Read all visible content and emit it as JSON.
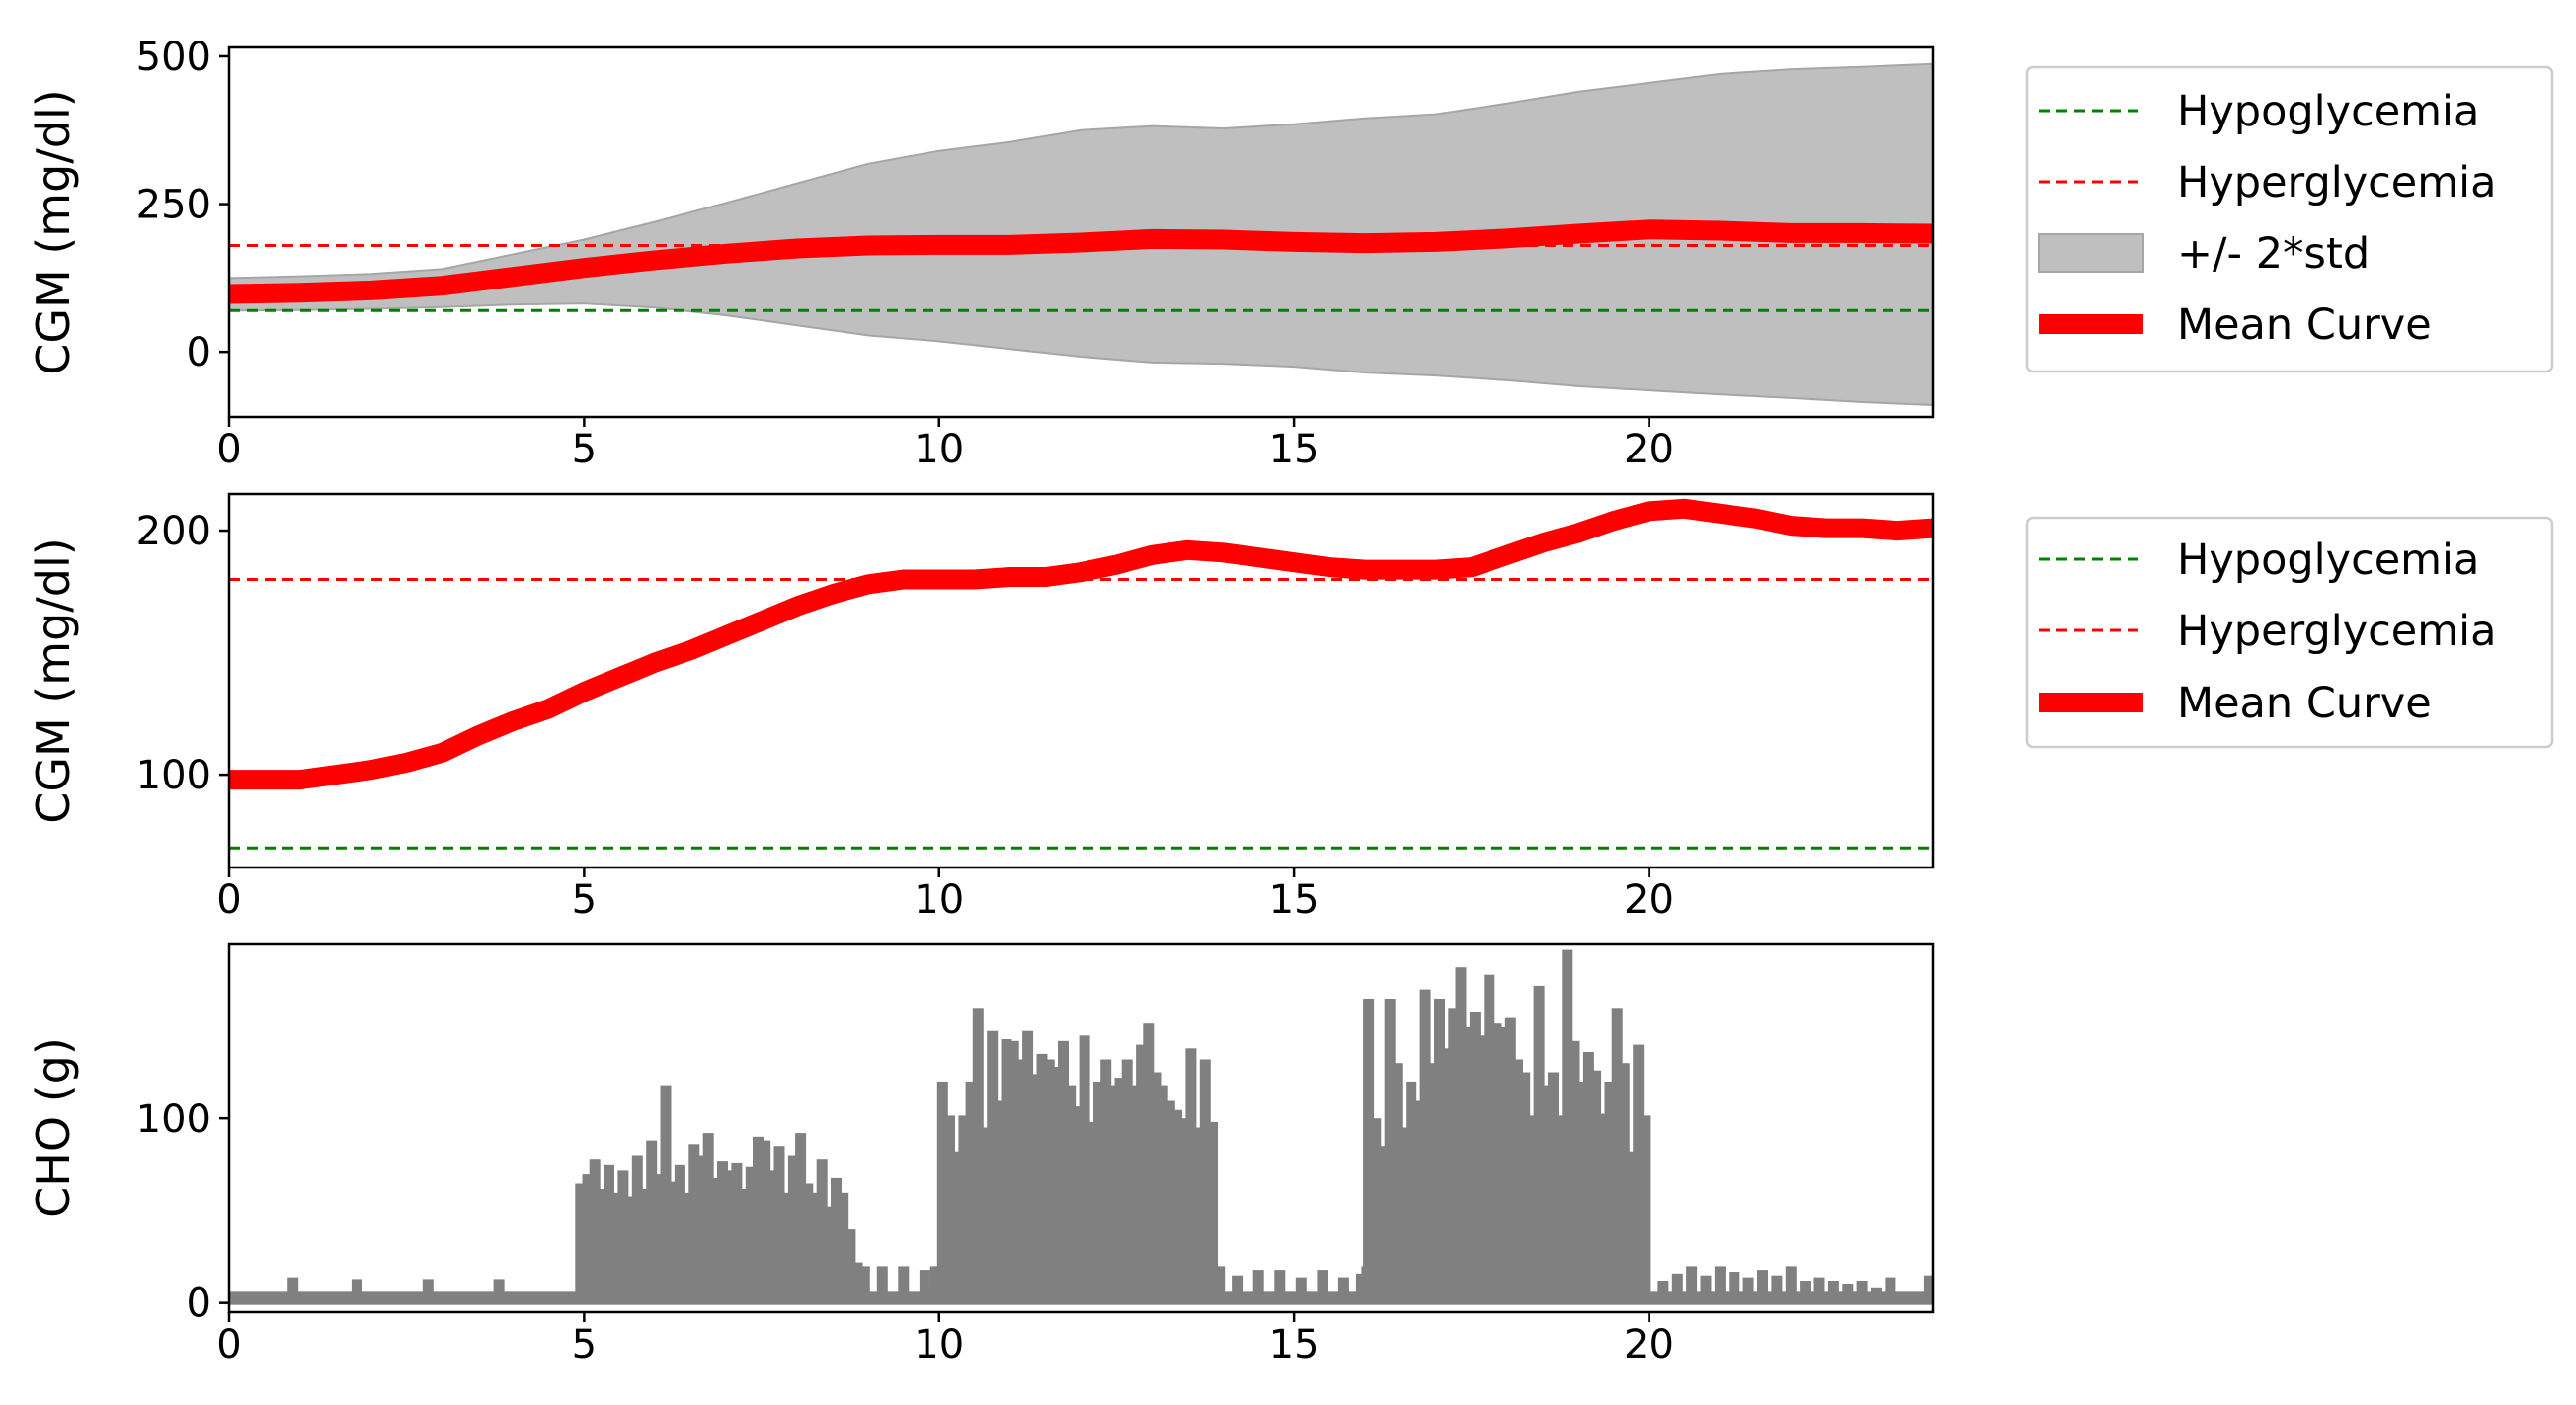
{
  "colors": {
    "hypoglycemia": "#008000",
    "hyperglycemia": "#ff0000",
    "mean_curve": "#ff0000",
    "band": "#bfbfbf",
    "band_edge": "#a6a6a6",
    "cho_bars": "#808080",
    "axes": "#000000",
    "legend_border": "#cccccc"
  },
  "chart_data": [
    {
      "type": "area",
      "ylabel": "CGM (mg/dl)",
      "xlim": [
        0,
        24
      ],
      "ylim": [
        -110,
        515
      ],
      "xticks": [
        0,
        5,
        10,
        15,
        20
      ],
      "yticks": [
        0,
        250,
        500
      ],
      "legend_position": "outside-right",
      "hlines": [
        {
          "name": "Hypoglycemia",
          "y": 70,
          "style": "dashed",
          "color": "#008000"
        },
        {
          "name": "Hyperglycemia",
          "y": 180,
          "style": "dashed",
          "color": "#ff0000"
        }
      ],
      "x": [
        0,
        1,
        2,
        3,
        4,
        5,
        6,
        7,
        8,
        9,
        10,
        11,
        12,
        13,
        14,
        15,
        16,
        17,
        18,
        19,
        20,
        21,
        22,
        23,
        24
      ],
      "series": [
        {
          "name": "Mean Curve",
          "kind": "line",
          "values": [
            98,
            100,
            104,
            112,
            127,
            142,
            155,
            166,
            175,
            180,
            181,
            181,
            185,
            191,
            190,
            186,
            184,
            186,
            192,
            200,
            207,
            205,
            201,
            201,
            200
          ]
        },
        {
          "name": "+/- 2*std",
          "kind": "band",
          "upper": [
            125,
            128,
            132,
            140,
            165,
            190,
            220,
            252,
            285,
            318,
            340,
            355,
            375,
            382,
            378,
            385,
            395,
            402,
            420,
            440,
            455,
            470,
            478,
            482,
            487
          ],
          "lower": [
            70,
            71,
            73,
            76,
            80,
            82,
            75,
            62,
            45,
            28,
            18,
            5,
            -8,
            -18,
            -20,
            -25,
            -35,
            -40,
            -48,
            -58,
            -65,
            -72,
            -78,
            -85,
            -90
          ]
        }
      ]
    },
    {
      "type": "line",
      "ylabel": "CGM (mg/dl)",
      "xlim": [
        0,
        24
      ],
      "ylim": [
        62,
        215
      ],
      "xticks": [
        0,
        5,
        10,
        15,
        20
      ],
      "yticks": [
        100,
        200
      ],
      "legend_position": "outside-right",
      "hlines": [
        {
          "name": "Hypoglycemia",
          "y": 70,
          "style": "dashed",
          "color": "#008000"
        },
        {
          "name": "Hyperglycemia",
          "y": 180,
          "style": "dashed",
          "color": "#ff0000"
        }
      ],
      "series": [
        {
          "name": " Mean Curve",
          "x": [
            0,
            0.5,
            1,
            1.5,
            2,
            2.5,
            3,
            3.5,
            4,
            4.5,
            5,
            5.5,
            6,
            6.5,
            7,
            7.5,
            8,
            8.5,
            9,
            9.5,
            10,
            10.5,
            11,
            11.5,
            12,
            12.5,
            13,
            13.5,
            14,
            14.5,
            15,
            15.5,
            16,
            16.5,
            17,
            17.5,
            18,
            18.5,
            19,
            19.5,
            20,
            20.5,
            21,
            21.5,
            22,
            22.5,
            23,
            23.5,
            24
          ],
          "values": [
            98,
            98,
            98,
            100,
            102,
            105,
            109,
            116,
            122,
            127,
            134,
            140,
            146,
            151,
            157,
            163,
            169,
            174,
            178,
            180,
            180,
            180,
            181,
            181,
            183,
            186,
            190,
            192,
            191,
            189,
            187,
            185,
            184,
            184,
            184,
            185,
            190,
            195,
            199,
            204,
            208,
            209,
            207,
            205,
            202,
            201,
            201,
            200,
            201
          ]
        }
      ]
    },
    {
      "type": "bar",
      "ylabel": "CHO (g)",
      "xlim": [
        0,
        24
      ],
      "ylim": [
        -5,
        195
      ],
      "xticks": [
        0,
        5,
        10,
        15,
        20
      ],
      "yticks": [
        0,
        100
      ],
      "baseline": 5,
      "series": [
        {
          "name": "CHO",
          "x": [
            0.3,
            0.7,
            0.9,
            1.3,
            1.8,
            2.3,
            2.8,
            3.3,
            3.8,
            4.3,
            4.7,
            4.95,
            5.05,
            5.15,
            5.25,
            5.35,
            5.45,
            5.55,
            5.65,
            5.75,
            5.85,
            5.95,
            6.05,
            6.15,
            6.25,
            6.35,
            6.45,
            6.55,
            6.65,
            6.75,
            6.85,
            6.95,
            7.05,
            7.15,
            7.25,
            7.35,
            7.45,
            7.55,
            7.65,
            7.75,
            7.85,
            7.95,
            8.05,
            8.15,
            8.25,
            8.35,
            8.45,
            8.55,
            8.65,
            8.75,
            8.85,
            8.95,
            9.2,
            9.5,
            9.8,
            9.95,
            10.05,
            10.15,
            10.25,
            10.35,
            10.45,
            10.55,
            10.65,
            10.75,
            10.85,
            10.95,
            11.05,
            11.15,
            11.25,
            11.35,
            11.45,
            11.55,
            11.65,
            11.75,
            11.85,
            11.95,
            12.05,
            12.15,
            12.25,
            12.35,
            12.45,
            12.55,
            12.65,
            12.75,
            12.85,
            12.95,
            13.05,
            13.15,
            13.25,
            13.35,
            13.45,
            13.55,
            13.65,
            13.75,
            13.85,
            13.95,
            14.2,
            14.5,
            14.8,
            15.1,
            15.4,
            15.7,
            15.95,
            16.05,
            16.15,
            16.25,
            16.35,
            16.45,
            16.55,
            16.65,
            16.75,
            16.85,
            16.95,
            17.05,
            17.15,
            17.25,
            17.35,
            17.45,
            17.55,
            17.65,
            17.75,
            17.85,
            17.95,
            18.05,
            18.15,
            18.25,
            18.35,
            18.45,
            18.55,
            18.65,
            18.75,
            18.85,
            18.95,
            19.05,
            19.15,
            19.25,
            19.35,
            19.45,
            19.55,
            19.65,
            19.75,
            19.85,
            19.95,
            20.2,
            20.4,
            20.6,
            20.8,
            21.0,
            21.2,
            21.4,
            21.6,
            21.8,
            22.0,
            22.2,
            22.4,
            22.6,
            22.8,
            23.0,
            23.2,
            23.4,
            23.6,
            23.8,
            23.95
          ],
          "values": [
            5,
            5,
            14,
            5,
            13,
            5,
            13,
            5,
            13,
            5,
            5,
            65,
            70,
            78,
            62,
            75,
            60,
            72,
            58,
            80,
            62,
            88,
            70,
            118,
            66,
            75,
            60,
            86,
            80,
            92,
            68,
            77,
            72,
            76,
            62,
            74,
            90,
            88,
            72,
            85,
            60,
            80,
            92,
            65,
            60,
            78,
            52,
            68,
            60,
            40,
            22,
            20,
            20,
            20,
            18,
            20,
            120,
            102,
            82,
            102,
            120,
            160,
            95,
            148,
            110,
            143,
            142,
            132,
            148,
            124,
            135,
            132,
            128,
            142,
            118,
            107,
            145,
            98,
            120,
            132,
            118,
            122,
            132,
            118,
            140,
            152,
            125,
            118,
            110,
            105,
            100,
            138,
            95,
            132,
            98,
            20,
            15,
            18,
            18,
            14,
            18,
            14,
            16,
            165,
            100,
            85,
            165,
            130,
            95,
            120,
            110,
            170,
            130,
            165,
            138,
            160,
            182,
            150,
            158,
            145,
            178,
            152,
            150,
            155,
            132,
            125,
            102,
            172,
            118,
            125,
            102,
            192,
            142,
            120,
            136,
            126,
            103,
            120,
            160,
            130,
            82,
            140,
            102,
            12,
            16,
            20,
            15,
            20,
            17,
            14,
            18,
            15,
            20,
            12,
            14,
            12,
            10,
            12,
            8,
            14,
            6,
            5,
            15
          ]
        }
      ]
    }
  ],
  "legends": [
    {
      "items": [
        {
          "label": "Hypoglycemia",
          "kind": "dashed",
          "color": "#008000"
        },
        {
          "label": "Hyperglycemia",
          "kind": "dashed",
          "color": "#ff0000"
        },
        {
          "label": "+/- 2*std",
          "kind": "patch",
          "color": "#bfbfbf"
        },
        {
          "label": "Mean Curve",
          "kind": "thick",
          "color": "#ff0000"
        }
      ]
    },
    {
      "items": [
        {
          "label": "Hypoglycemia",
          "kind": "dashed",
          "color": "#008000"
        },
        {
          "label": "Hyperglycemia",
          "kind": "dashed",
          "color": "#ff0000"
        },
        {
          "label": " Mean Curve",
          "kind": "thick",
          "color": "#ff0000"
        }
      ]
    }
  ]
}
